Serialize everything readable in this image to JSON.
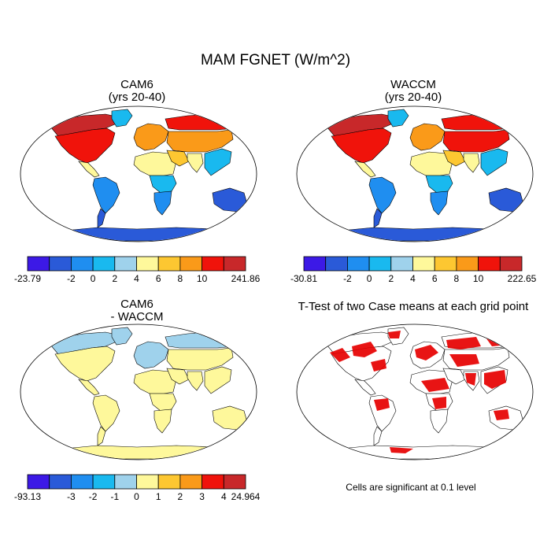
{
  "figure": {
    "title": "MAM FGNET (W/m^2)",
    "palette": [
      "#3c19e6",
      "#2a5ad8",
      "#1f8ef0",
      "#19b9ef",
      "#9fd2ec",
      "#fef89b",
      "#fdc731",
      "#fa9a19",
      "#f0130b",
      "#c8282a"
    ],
    "ocean_color": "#ffffff",
    "coast_color": "#000000",
    "signif_color": "#e60000"
  },
  "panels": [
    {
      "id": "cam6",
      "title_line1": "CAM6",
      "title_line2": "(yrs 20-40)",
      "colorbar": {
        "labels": [
          "-23.79",
          "-2",
          "0",
          "2",
          "4",
          "6",
          "8",
          "10",
          "241.86"
        ]
      },
      "regions": {
        "north_america": 8,
        "alaska_canada": 9,
        "greenland": 3,
        "central_america": 5,
        "south_america": 2,
        "south_america_south": 1,
        "north_africa": 5,
        "central_africa": 3,
        "southern_africa": 2,
        "europe": 7,
        "siberia": 8,
        "central_asia": 7,
        "middle_east": 6,
        "india": 5,
        "southeast_asia": 3,
        "australia": 1,
        "antarctica": 1
      }
    },
    {
      "id": "waccm",
      "title_line1": "WACCM",
      "title_line2": "(yrs 20-40)",
      "colorbar": {
        "labels": [
          "-30.81",
          "-2",
          "0",
          "2",
          "4",
          "6",
          "8",
          "10",
          "222.65"
        ]
      },
      "regions": {
        "north_america": 8,
        "alaska_canada": 9,
        "greenland": 3,
        "central_america": 5,
        "south_america": 2,
        "south_america_south": 1,
        "north_africa": 5,
        "central_africa": 3,
        "southern_africa": 2,
        "europe": 7,
        "siberia": 8,
        "central_asia": 8,
        "middle_east": 6,
        "india": 5,
        "southeast_asia": 3,
        "australia": 1,
        "antarctica": 1
      }
    },
    {
      "id": "diff",
      "title_line1": "CAM6",
      "title_line2": "- WACCM",
      "colorbar": {
        "labels": [
          "-93.13",
          "-3",
          "-2",
          "-1",
          "0",
          "1",
          "2",
          "3",
          "4",
          "24.964"
        ]
      },
      "regions": {
        "north_america": 5,
        "alaska_canada": 4,
        "greenland": 4,
        "central_america": 5,
        "south_america": 5,
        "south_america_south": 5,
        "north_africa": 5,
        "central_africa": 5,
        "southern_africa": 5,
        "europe": 4,
        "siberia": 4,
        "central_asia": 5,
        "middle_east": 5,
        "india": 5,
        "southeast_asia": 5,
        "australia": 5,
        "antarctica": 5
      }
    },
    {
      "id": "ttest",
      "title": "T-Test of two Case means at each grid point",
      "note": "Cells are significant at 0.1 level"
    }
  ]
}
